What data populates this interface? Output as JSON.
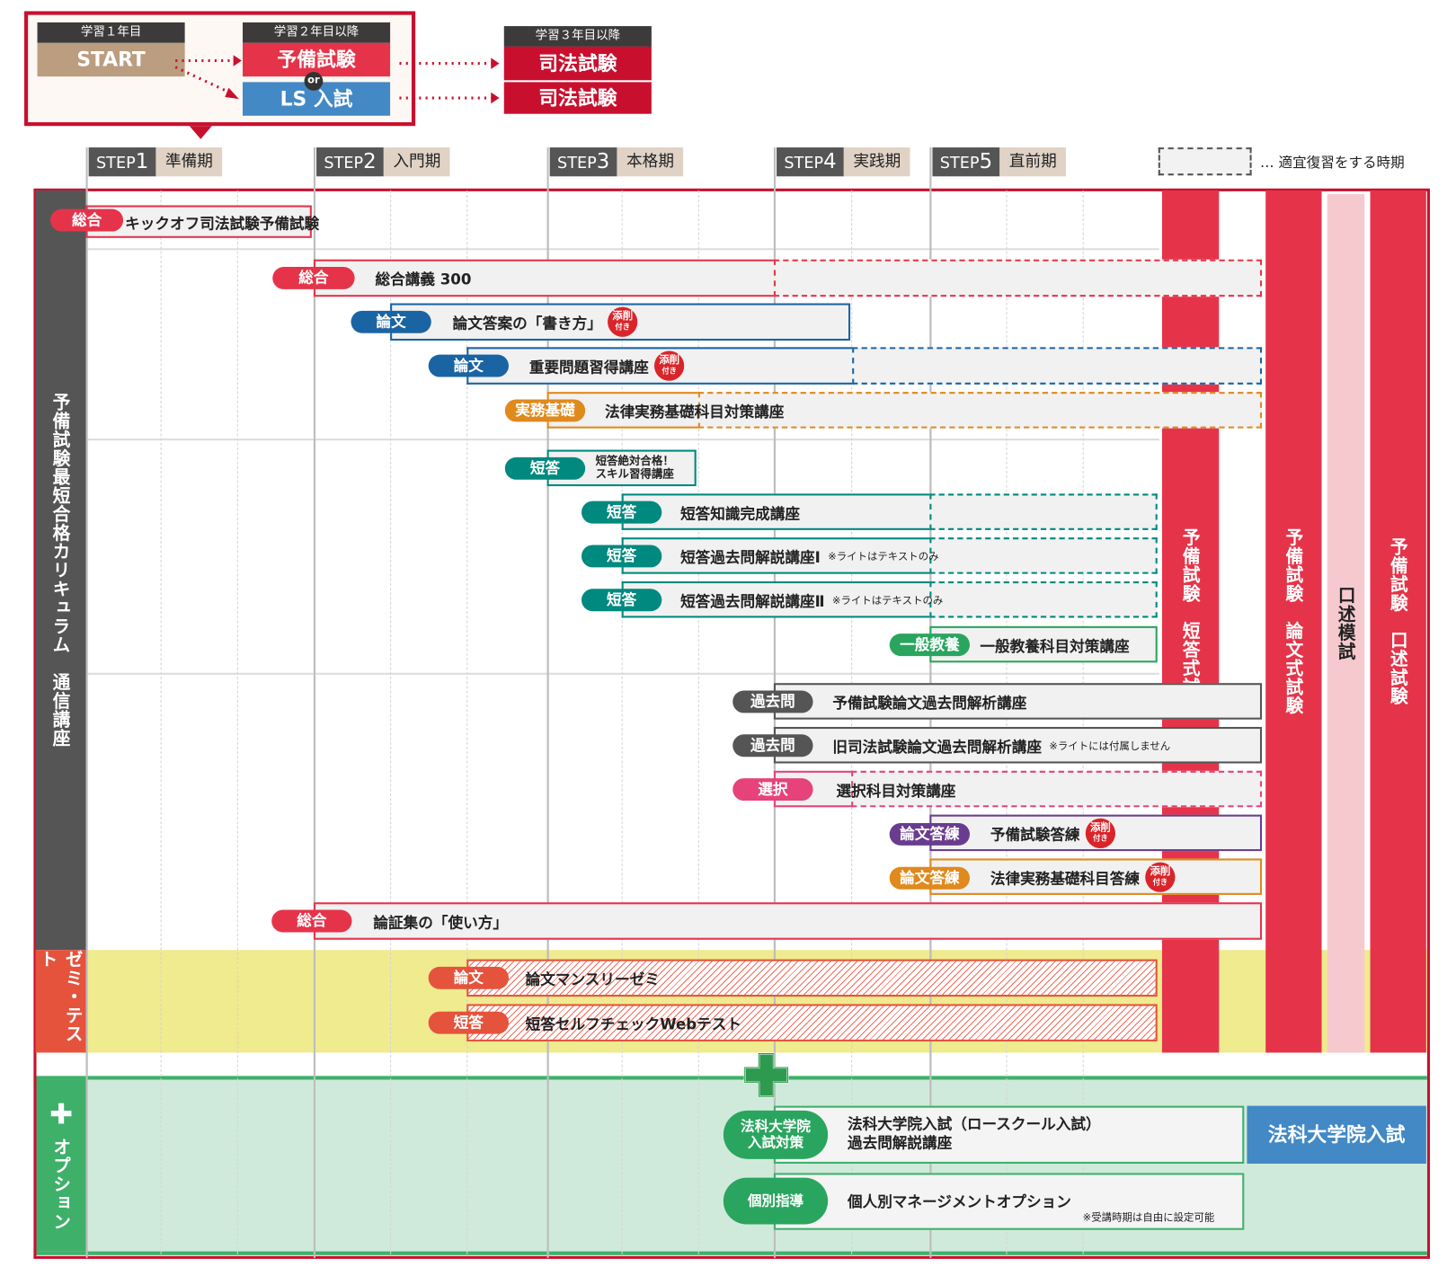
{
  "flow": {
    "year1": {
      "header": "学習１年目",
      "label": "START"
    },
    "year2": {
      "header": "学習２年目以降",
      "option_a": "予備試験",
      "or": "or",
      "option_b": "LS 入試"
    },
    "year3": {
      "header": "学習３年目以降",
      "result_a": "司法試験",
      "result_b": "司法試験"
    }
  },
  "steps": [
    {
      "step": "STEP",
      "num": "1",
      "period": "準備期"
    },
    {
      "step": "STEP",
      "num": "2",
      "period": "入門期"
    },
    {
      "step": "STEP",
      "num": "3",
      "period": "本格期"
    },
    {
      "step": "STEP",
      "num": "4",
      "period": "実践期"
    },
    {
      "step": "STEP",
      "num": "5",
      "period": "直前期"
    }
  ],
  "legend": {
    "text": "… 適宜復習をする時期"
  },
  "sections": {
    "main": "予備試験最短合格カリキュラム　通信講座",
    "zemi": "ゼミ・テスト",
    "option": "オプション"
  },
  "exams": {
    "tanto": "予備試験　短答式試験",
    "ronbun": "予備試験　論文式試験",
    "koujutsu_mock": "口述模試",
    "koujutsu": "予備試験　口述試験",
    "ls": "法科大学院入試"
  },
  "badge": {
    "top": "添削",
    "bottom": "付き"
  },
  "colors": {
    "red": "#e5344a",
    "blue": "#1b64a3",
    "teal": "#00897f",
    "orange": "#e0891d",
    "green": "#2aa55f",
    "gray": "#555555",
    "pink": "#e5437a",
    "purple": "#6a3c8f",
    "zemi": "#e5533d",
    "yellow": "#efeb8e",
    "option_bg": "#cfeadb"
  },
  "courses": [
    {
      "tag": "総合",
      "color": "red",
      "title": "キックオフ司法試験予備試験"
    },
    {
      "tag": "総合",
      "color": "red",
      "title": "総合講義 300"
    },
    {
      "tag": "論文",
      "color": "blue",
      "title": "論文答案の「書き方」",
      "badge": true
    },
    {
      "tag": "論文",
      "color": "blue",
      "title": "重要問題習得講座",
      "badge": true
    },
    {
      "tag": "実務基礎",
      "color": "orange",
      "title": "法律実務基礎科目対策講座"
    },
    {
      "tag": "短答",
      "color": "teal",
      "title": "短答絶対合格！",
      "title2": "スキル習得講座"
    },
    {
      "tag": "短答",
      "color": "teal",
      "title": "短答知識完成講座"
    },
    {
      "tag": "短答",
      "color": "teal",
      "title": "短答過去問解説講座Ⅰ",
      "note": "※ライトはテキストのみ"
    },
    {
      "tag": "短答",
      "color": "teal",
      "title": "短答過去問解説講座Ⅱ",
      "note": "※ライトはテキストのみ"
    },
    {
      "tag": "一般教養",
      "color": "green",
      "title": "一般教養科目対策講座"
    },
    {
      "tag": "過去問",
      "color": "gray",
      "title": "予備試験論文過去問解析講座"
    },
    {
      "tag": "過去問",
      "color": "gray",
      "title": "旧司法試験論文過去問解析講座",
      "note": "※ライトには付属しません"
    },
    {
      "tag": "選択",
      "color": "pink",
      "title": "選択科目対策講座"
    },
    {
      "tag": "論文答練",
      "color": "purple",
      "title": "予備試験答練",
      "badge": true
    },
    {
      "tag": "論文答練",
      "color": "orange",
      "title": "法律実務基礎科目答練",
      "badge": true
    },
    {
      "tag": "総合",
      "color": "red",
      "title": "論証集の「使い方」"
    },
    {
      "tag": "論文",
      "color": "zemi",
      "title": "論文マンスリーゼミ"
    },
    {
      "tag": "短答",
      "color": "zemi",
      "title": "短答セルフチェックWebテスト"
    },
    {
      "tag": "法科大学院\n入試対策",
      "color": "green",
      "title": "法科大学院入試（ロースクール入試）",
      "title2": "過去問解説講座"
    },
    {
      "tag": "個別指導",
      "color": "green",
      "title": "個人別マネージメントオプション",
      "note2": "※受講時期は自由に設定可能"
    }
  ]
}
